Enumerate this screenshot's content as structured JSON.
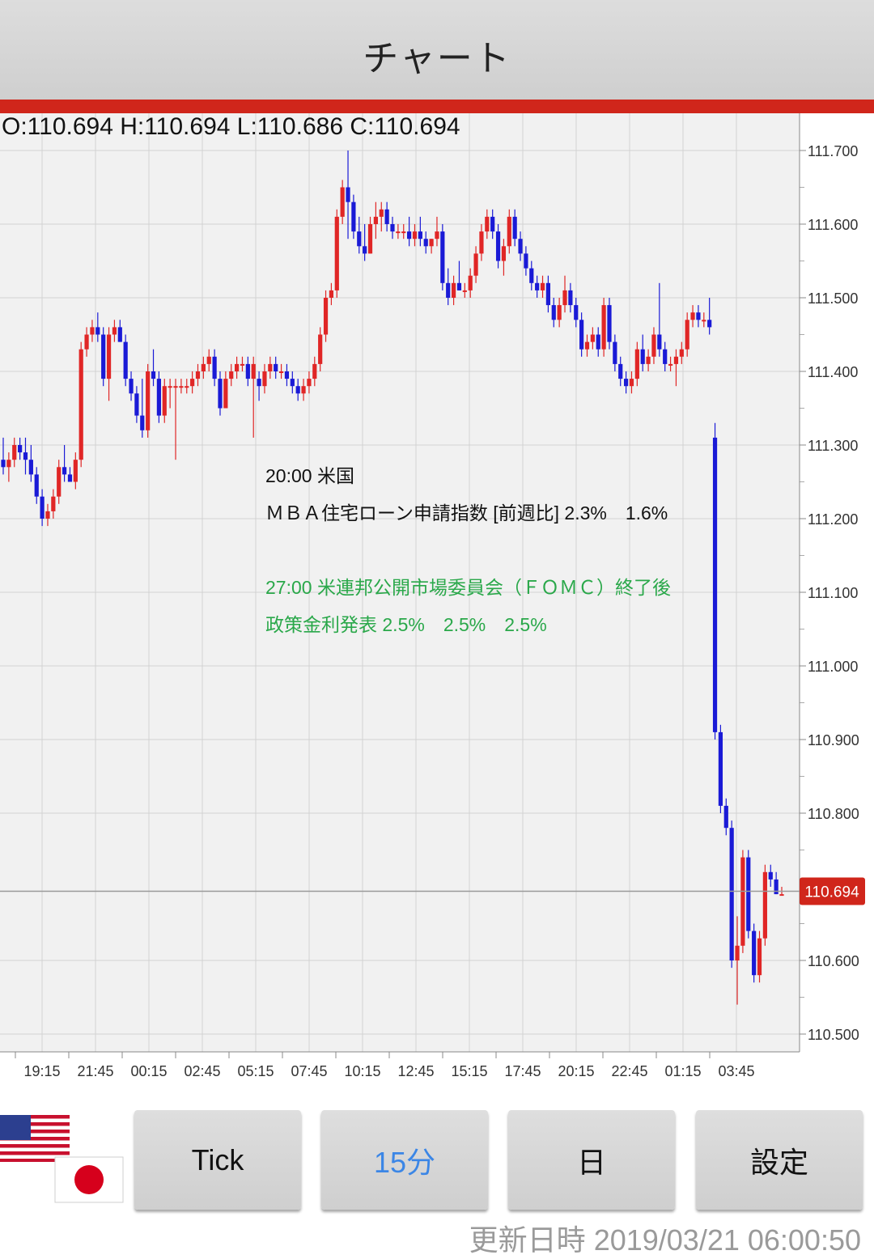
{
  "header": {
    "title": "チャート"
  },
  "ohlc": {
    "text": "O:110.694 H:110.694 L:110.686 C:110.694"
  },
  "colors": {
    "up": "#e02626",
    "down": "#1a1ad6",
    "accent": "#d0261b",
    "active_tab": "#3b86e6",
    "events_black": "#111111",
    "events_green": "#2aa84a"
  },
  "events": {
    "line1": "20:00 米国",
    "line2": "ＭＢＡ住宅ローン申請指数 [前週比] 2.3%　1.6%",
    "line3": "27:00 米連邦公開市場委員会（ＦＯＭＣ）終了後",
    "line4": "政策金利発表 2.5%　2.5%　2.5%"
  },
  "toolbar": {
    "tick_label": "Tick",
    "m15_label": "15分",
    "day_label": "日",
    "settings_label": "設定"
  },
  "flags": {
    "top": "us-flag-icon",
    "bottom": "japan-flag-icon"
  },
  "updated": {
    "label": "更新日時",
    "value": "2019/03/21 06:00:50"
  },
  "chart_data": {
    "type": "candlestick",
    "ylim": [
      110.48,
      111.73
    ],
    "y_ticks": [
      "111.700",
      "111.600",
      "111.500",
      "111.400",
      "111.300",
      "111.200",
      "111.100",
      "111.000",
      "110.900",
      "110.800",
      "110.600",
      "110.500"
    ],
    "x_ticks": [
      "19:15",
      "21:45",
      "00:15",
      "02:45",
      "05:15",
      "07:45",
      "10:15",
      "12:45",
      "15:15",
      "17:45",
      "20:15",
      "22:45",
      "01:15",
      "03:45"
    ],
    "last_price": {
      "value": 110.694,
      "label": "110.694"
    },
    "grid": true,
    "candles": [
      [
        111.28,
        111.31,
        111.26,
        111.27
      ],
      [
        111.27,
        111.29,
        111.25,
        111.28
      ],
      [
        111.28,
        111.31,
        111.27,
        111.3
      ],
      [
        111.3,
        111.31,
        111.28,
        111.29
      ],
      [
        111.29,
        111.31,
        111.26,
        111.28
      ],
      [
        111.28,
        111.3,
        111.25,
        111.26
      ],
      [
        111.26,
        111.27,
        111.22,
        111.23
      ],
      [
        111.23,
        111.24,
        111.19,
        111.2
      ],
      [
        111.2,
        111.22,
        111.19,
        111.21
      ],
      [
        111.21,
        111.24,
        111.2,
        111.23
      ],
      [
        111.23,
        111.28,
        111.22,
        111.27
      ],
      [
        111.27,
        111.3,
        111.25,
        111.26
      ],
      [
        111.26,
        111.27,
        111.25,
        111.25
      ],
      [
        111.25,
        111.29,
        111.24,
        111.28
      ],
      [
        111.28,
        111.44,
        111.27,
        111.43
      ],
      [
        111.43,
        111.46,
        111.42,
        111.45
      ],
      [
        111.45,
        111.47,
        111.44,
        111.46
      ],
      [
        111.46,
        111.48,
        111.44,
        111.45
      ],
      [
        111.45,
        111.46,
        111.38,
        111.39
      ],
      [
        111.39,
        111.46,
        111.36,
        111.45
      ],
      [
        111.45,
        111.47,
        111.44,
        111.46
      ],
      [
        111.46,
        111.47,
        111.44,
        111.44
      ],
      [
        111.44,
        111.45,
        111.38,
        111.39
      ],
      [
        111.39,
        111.4,
        111.36,
        111.37
      ],
      [
        111.37,
        111.38,
        111.33,
        111.34
      ],
      [
        111.34,
        111.39,
        111.31,
        111.32
      ],
      [
        111.32,
        111.41,
        111.31,
        111.4
      ],
      [
        111.4,
        111.43,
        111.38,
        111.39
      ],
      [
        111.39,
        111.4,
        111.33,
        111.34
      ],
      [
        111.34,
        111.39,
        111.33,
        111.38
      ],
      [
        111.38,
        111.39,
        111.35,
        111.38
      ],
      [
        111.38,
        111.39,
        111.28,
        111.38
      ],
      [
        111.38,
        111.39,
        111.37,
        111.38
      ],
      [
        111.38,
        111.39,
        111.37,
        111.38
      ],
      [
        111.38,
        111.4,
        111.37,
        111.39
      ],
      [
        111.39,
        111.41,
        111.38,
        111.4
      ],
      [
        111.4,
        111.42,
        111.39,
        111.41
      ],
      [
        111.41,
        111.43,
        111.4,
        111.42
      ],
      [
        111.42,
        111.43,
        111.38,
        111.39
      ],
      [
        111.39,
        111.4,
        111.34,
        111.35
      ],
      [
        111.35,
        111.4,
        111.35,
        111.39
      ],
      [
        111.39,
        111.41,
        111.38,
        111.4
      ],
      [
        111.4,
        111.42,
        111.39,
        111.41
      ],
      [
        111.41,
        111.42,
        111.4,
        111.41
      ],
      [
        111.41,
        111.42,
        111.38,
        111.39
      ],
      [
        111.39,
        111.42,
        111.31,
        111.41
      ],
      [
        111.39,
        111.4,
        111.36,
        111.38
      ],
      [
        111.38,
        111.41,
        111.37,
        111.4
      ],
      [
        111.4,
        111.42,
        111.39,
        111.41
      ],
      [
        111.41,
        111.42,
        111.39,
        111.4
      ],
      [
        111.4,
        111.41,
        111.39,
        111.4
      ],
      [
        111.4,
        111.41,
        111.38,
        111.39
      ],
      [
        111.39,
        111.4,
        111.37,
        111.38
      ],
      [
        111.38,
        111.39,
        111.36,
        111.37
      ],
      [
        111.37,
        111.39,
        111.36,
        111.38
      ],
      [
        111.38,
        111.4,
        111.37,
        111.39
      ],
      [
        111.39,
        111.42,
        111.38,
        111.41
      ],
      [
        111.41,
        111.46,
        111.4,
        111.45
      ],
      [
        111.45,
        111.51,
        111.44,
        111.5
      ],
      [
        111.5,
        111.52,
        111.49,
        111.51
      ],
      [
        111.51,
        111.62,
        111.5,
        111.61
      ],
      [
        111.61,
        111.66,
        111.6,
        111.65
      ],
      [
        111.65,
        111.7,
        111.58,
        111.63
      ],
      [
        111.63,
        111.64,
        111.58,
        111.59
      ],
      [
        111.59,
        111.61,
        111.56,
        111.57
      ],
      [
        111.57,
        111.6,
        111.55,
        111.56
      ],
      [
        111.56,
        111.61,
        111.56,
        111.6
      ],
      [
        111.6,
        111.63,
        111.58,
        111.61
      ],
      [
        111.61,
        111.63,
        111.59,
        111.62
      ],
      [
        111.62,
        111.63,
        111.59,
        111.6
      ],
      [
        111.6,
        111.61,
        111.58,
        111.59
      ],
      [
        111.59,
        111.6,
        111.58,
        111.59
      ],
      [
        111.59,
        111.6,
        111.58,
        111.59
      ],
      [
        111.59,
        111.61,
        111.57,
        111.58
      ],
      [
        111.58,
        111.6,
        111.57,
        111.59
      ],
      [
        111.59,
        111.61,
        111.57,
        111.58
      ],
      [
        111.58,
        111.59,
        111.56,
        111.57
      ],
      [
        111.57,
        111.58,
        111.56,
        111.58
      ],
      [
        111.58,
        111.61,
        111.57,
        111.59
      ],
      [
        111.59,
        111.6,
        111.51,
        111.52
      ],
      [
        111.52,
        111.54,
        111.49,
        111.5
      ],
      [
        111.5,
        111.53,
        111.49,
        111.52
      ],
      [
        111.52,
        111.55,
        111.51,
        111.51
      ],
      [
        111.51,
        111.52,
        111.5,
        111.51
      ],
      [
        111.51,
        111.54,
        111.5,
        111.53
      ],
      [
        111.53,
        111.57,
        111.52,
        111.56
      ],
      [
        111.56,
        111.6,
        111.55,
        111.59
      ],
      [
        111.59,
        111.62,
        111.58,
        111.61
      ],
      [
        111.61,
        111.62,
        111.58,
        111.59
      ],
      [
        111.59,
        111.6,
        111.54,
        111.55
      ],
      [
        111.55,
        111.58,
        111.53,
        111.57
      ],
      [
        111.57,
        111.62,
        111.56,
        111.61
      ],
      [
        111.61,
        111.62,
        111.57,
        111.58
      ],
      [
        111.58,
        111.59,
        111.55,
        111.56
      ],
      [
        111.56,
        111.57,
        111.53,
        111.54
      ],
      [
        111.54,
        111.55,
        111.51,
        111.52
      ],
      [
        111.52,
        111.53,
        111.5,
        111.51
      ],
      [
        111.51,
        111.53,
        111.5,
        111.52
      ],
      [
        111.52,
        111.53,
        111.48,
        111.49
      ],
      [
        111.49,
        111.5,
        111.46,
        111.47
      ],
      [
        111.47,
        111.5,
        111.46,
        111.49
      ],
      [
        111.49,
        111.53,
        111.48,
        111.51
      ],
      [
        111.51,
        111.52,
        111.48,
        111.49
      ],
      [
        111.49,
        111.5,
        111.46,
        111.47
      ],
      [
        111.47,
        111.48,
        111.42,
        111.43
      ],
      [
        111.43,
        111.45,
        111.42,
        111.44
      ],
      [
        111.44,
        111.46,
        111.43,
        111.45
      ],
      [
        111.45,
        111.46,
        111.42,
        111.43
      ],
      [
        111.43,
        111.5,
        111.42,
        111.49
      ],
      [
        111.49,
        111.5,
        111.43,
        111.44
      ],
      [
        111.44,
        111.45,
        111.4,
        111.41
      ],
      [
        111.41,
        111.42,
        111.38,
        111.39
      ],
      [
        111.39,
        111.4,
        111.37,
        111.38
      ],
      [
        111.38,
        111.4,
        111.37,
        111.39
      ],
      [
        111.39,
        111.44,
        111.38,
        111.43
      ],
      [
        111.43,
        111.45,
        111.4,
        111.41
      ],
      [
        111.41,
        111.43,
        111.4,
        111.42
      ],
      [
        111.42,
        111.46,
        111.41,
        111.45
      ],
      [
        111.45,
        111.52,
        111.42,
        111.43
      ],
      [
        111.43,
        111.44,
        111.4,
        111.41
      ],
      [
        111.41,
        111.42,
        111.4,
        111.41
      ],
      [
        111.41,
        111.43,
        111.38,
        111.42
      ],
      [
        111.42,
        111.44,
        111.41,
        111.43
      ],
      [
        111.43,
        111.48,
        111.42,
        111.47
      ],
      [
        111.47,
        111.49,
        111.46,
        111.48
      ],
      [
        111.48,
        111.49,
        111.46,
        111.47
      ],
      [
        111.47,
        111.48,
        111.46,
        111.47
      ],
      [
        111.47,
        111.5,
        111.45,
        111.46
      ],
      [
        111.31,
        111.33,
        110.9,
        110.91
      ],
      [
        110.91,
        110.92,
        110.8,
        110.81
      ],
      [
        110.81,
        110.82,
        110.77,
        110.78
      ],
      [
        110.78,
        110.79,
        110.59,
        110.6
      ],
      [
        110.6,
        110.66,
        110.54,
        110.62
      ],
      [
        110.62,
        110.75,
        110.61,
        110.74
      ],
      [
        110.74,
        110.75,
        110.63,
        110.64
      ],
      [
        110.64,
        110.65,
        110.57,
        110.58
      ],
      [
        110.58,
        110.64,
        110.57,
        110.63
      ],
      [
        110.63,
        110.73,
        110.62,
        110.72
      ],
      [
        110.72,
        110.73,
        110.7,
        110.71
      ],
      [
        110.71,
        110.72,
        110.69,
        110.69
      ],
      [
        110.69,
        110.7,
        110.69,
        110.69
      ]
    ]
  }
}
